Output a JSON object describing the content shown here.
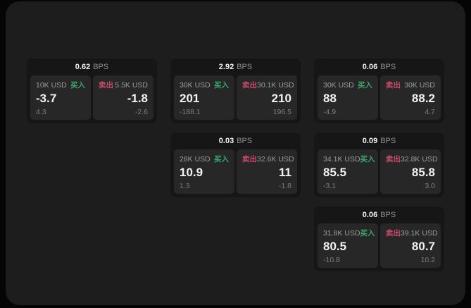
{
  "theme": {
    "bg_outer": "#050505",
    "bg_window": "#1d1d1d",
    "card_bg": "#161616",
    "panel_bg": "#272727",
    "green": "#3aa76d",
    "red": "#c8496c"
  },
  "labels": {
    "bps_unit": "BPS",
    "buy": "买入",
    "sell": "卖出"
  },
  "cards": [
    {
      "bps": "0.62",
      "buy": {
        "amount": "10K USD",
        "main": "-3.7",
        "sub": "4.3"
      },
      "sell": {
        "amount": "5.5K USD",
        "main": "-1.8",
        "sub": "-2.6"
      }
    },
    {
      "bps": "2.92",
      "buy": {
        "amount": "30K USD",
        "main": "201",
        "sub": "-188.1"
      },
      "sell": {
        "amount": "30.1K USD",
        "main": "210",
        "sub": "196.5"
      }
    },
    {
      "bps": "0.06",
      "buy": {
        "amount": "30K USD",
        "main": "88",
        "sub": "-4.9"
      },
      "sell": {
        "amount": "30K USD",
        "main": "88.2",
        "sub": "4.7"
      }
    },
    {
      "bps": "0.03",
      "buy": {
        "amount": "28K USD",
        "main": "10.9",
        "sub": "1.3"
      },
      "sell": {
        "amount": "32.6K USD",
        "main": "11",
        "sub": "-1.8"
      }
    },
    {
      "bps": "0.09",
      "buy": {
        "amount": "34.1K USD",
        "main": "85.5",
        "sub": "-3.1"
      },
      "sell": {
        "amount": "32.8K USD",
        "main": "85.8",
        "sub": "3.0"
      }
    },
    {
      "bps": "0.06",
      "buy": {
        "amount": "31.8K USD",
        "main": "80.5",
        "sub": "-10.8"
      },
      "sell": {
        "amount": "39.1K USD",
        "main": "80.7",
        "sub": "10.2"
      }
    }
  ]
}
